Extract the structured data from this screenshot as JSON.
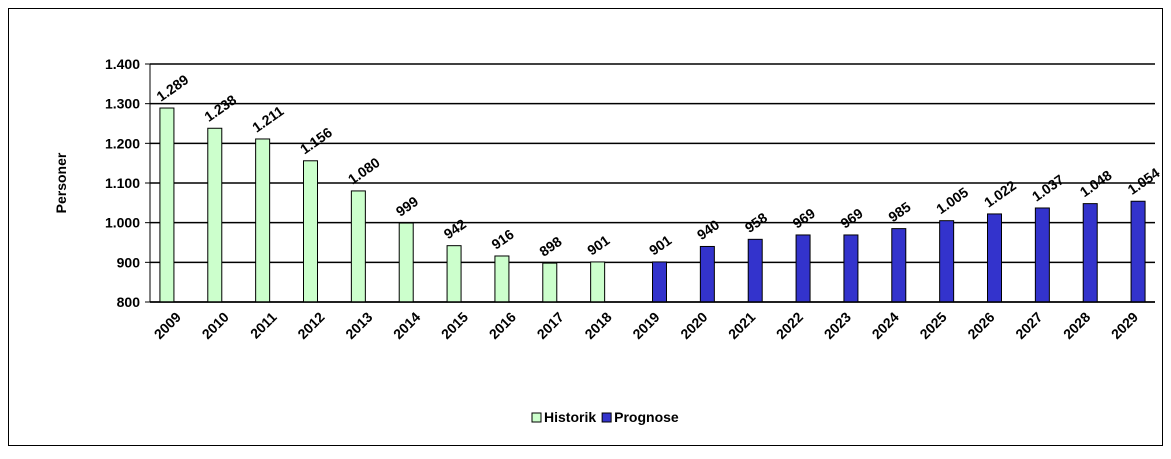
{
  "chart_data": {
    "type": "bar",
    "y_label": "Personer",
    "categories": [
      "2009",
      "2010",
      "2011",
      "2012",
      "2013",
      "2014",
      "2015",
      "2016",
      "2017",
      "2018",
      "2019",
      "2020",
      "2021",
      "2022",
      "2023",
      "2024",
      "2025",
      "2026",
      "2027",
      "2028",
      "2029"
    ],
    "series": [
      {
        "name": "Historik",
        "color": "#ccffcc",
        "values": [
          1289,
          1238,
          1211,
          1156,
          1080,
          999,
          942,
          916,
          898,
          901,
          null,
          null,
          null,
          null,
          null,
          null,
          null,
          null,
          null,
          null,
          null
        ],
        "value_labels": [
          "1.289",
          "1.238",
          "1.211",
          "1.156",
          "1.080",
          "999",
          "942",
          "916",
          "898",
          "901",
          null,
          null,
          null,
          null,
          null,
          null,
          null,
          null,
          null,
          null,
          null
        ]
      },
      {
        "name": "Prognose",
        "color": "#3333cc",
        "values": [
          null,
          null,
          null,
          null,
          null,
          null,
          null,
          null,
          null,
          null,
          901,
          940,
          958,
          969,
          969,
          985,
          1005,
          1022,
          1037,
          1048,
          1054
        ],
        "value_labels": [
          null,
          null,
          null,
          null,
          null,
          null,
          null,
          null,
          null,
          null,
          "901",
          "940",
          "958",
          "969",
          "969",
          "985",
          "1.005",
          "1.022",
          "1.037",
          "1.048",
          "1.054"
        ]
      }
    ],
    "ylim": [
      800,
      1400
    ],
    "yticks": [
      800,
      900,
      {
        "value": 1000,
        "label": "1.000"
      },
      {
        "value": 1100,
        "label": "1.100"
      },
      {
        "value": 1200,
        "label": "1.200"
      },
      {
        "value": 1300,
        "label": "1.300"
      },
      {
        "value": 1400,
        "label": "1.400"
      }
    ],
    "grid": true,
    "legend": "bottom"
  }
}
